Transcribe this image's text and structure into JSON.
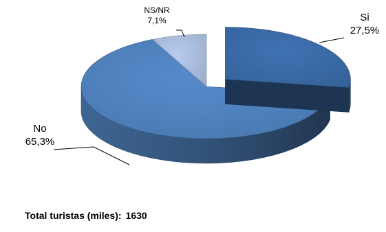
{
  "chart_data": {
    "type": "pie",
    "slices": [
      {
        "label": "Si",
        "value": 27.5,
        "value_label": "27,5%",
        "color": "#3A6AA6",
        "exploded": true
      },
      {
        "label": "No",
        "value": 65.3,
        "value_label": "65,3%",
        "color": "#4F81BD",
        "exploded": false
      },
      {
        "label": "NS/NR",
        "value": 7.1,
        "value_label": "7,1%",
        "color": "#A9BCDC",
        "exploded": false
      }
    ],
    "style": "3d"
  },
  "footer": {
    "label": "Total turistas (miles):",
    "value": "1630"
  }
}
